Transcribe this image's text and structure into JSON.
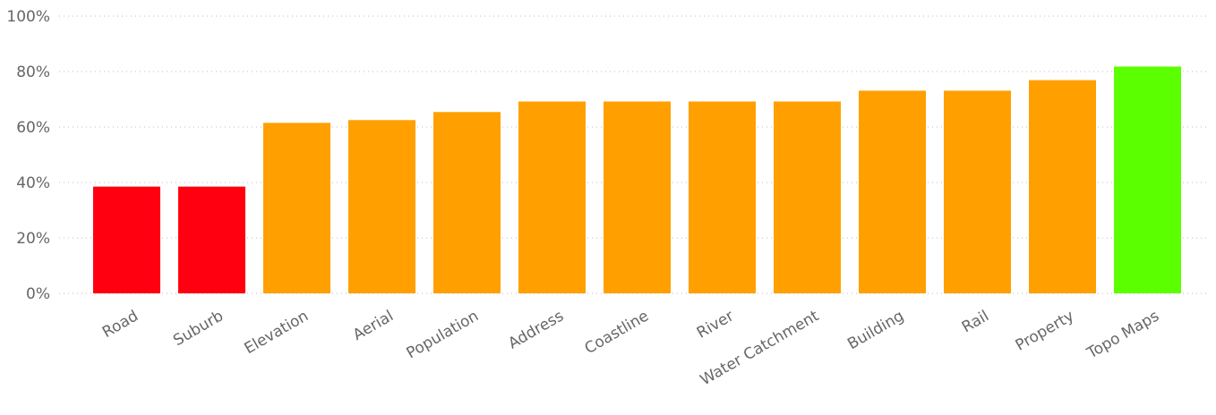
{
  "chart_data": {
    "type": "bar",
    "categories": [
      "Road",
      "Suburb",
      "Elevation",
      "Aerial",
      "Population",
      "Address",
      "Coastline",
      "River",
      "Water Catchment",
      "Building",
      "Rail",
      "Property",
      "Topo Maps"
    ],
    "values": [
      38.5,
      38.5,
      61.5,
      62.5,
      65.4,
      69.2,
      69.2,
      69.2,
      69.2,
      73.1,
      73.1,
      76.9,
      81.8
    ],
    "bar_colors": [
      "#ff0011",
      "#ff0011",
      "#ffa000",
      "#ffa000",
      "#ffa000",
      "#ffa000",
      "#ffa000",
      "#ffa000",
      "#ffa000",
      "#ffa000",
      "#ffa000",
      "#ffa000",
      "#5cff00"
    ],
    "y_ticks": [
      "0%",
      "20%",
      "40%",
      "60%",
      "80%",
      "100%"
    ],
    "ylim": [
      0,
      100
    ],
    "grid": true,
    "title": "",
    "xlabel": "",
    "ylabel": ""
  }
}
